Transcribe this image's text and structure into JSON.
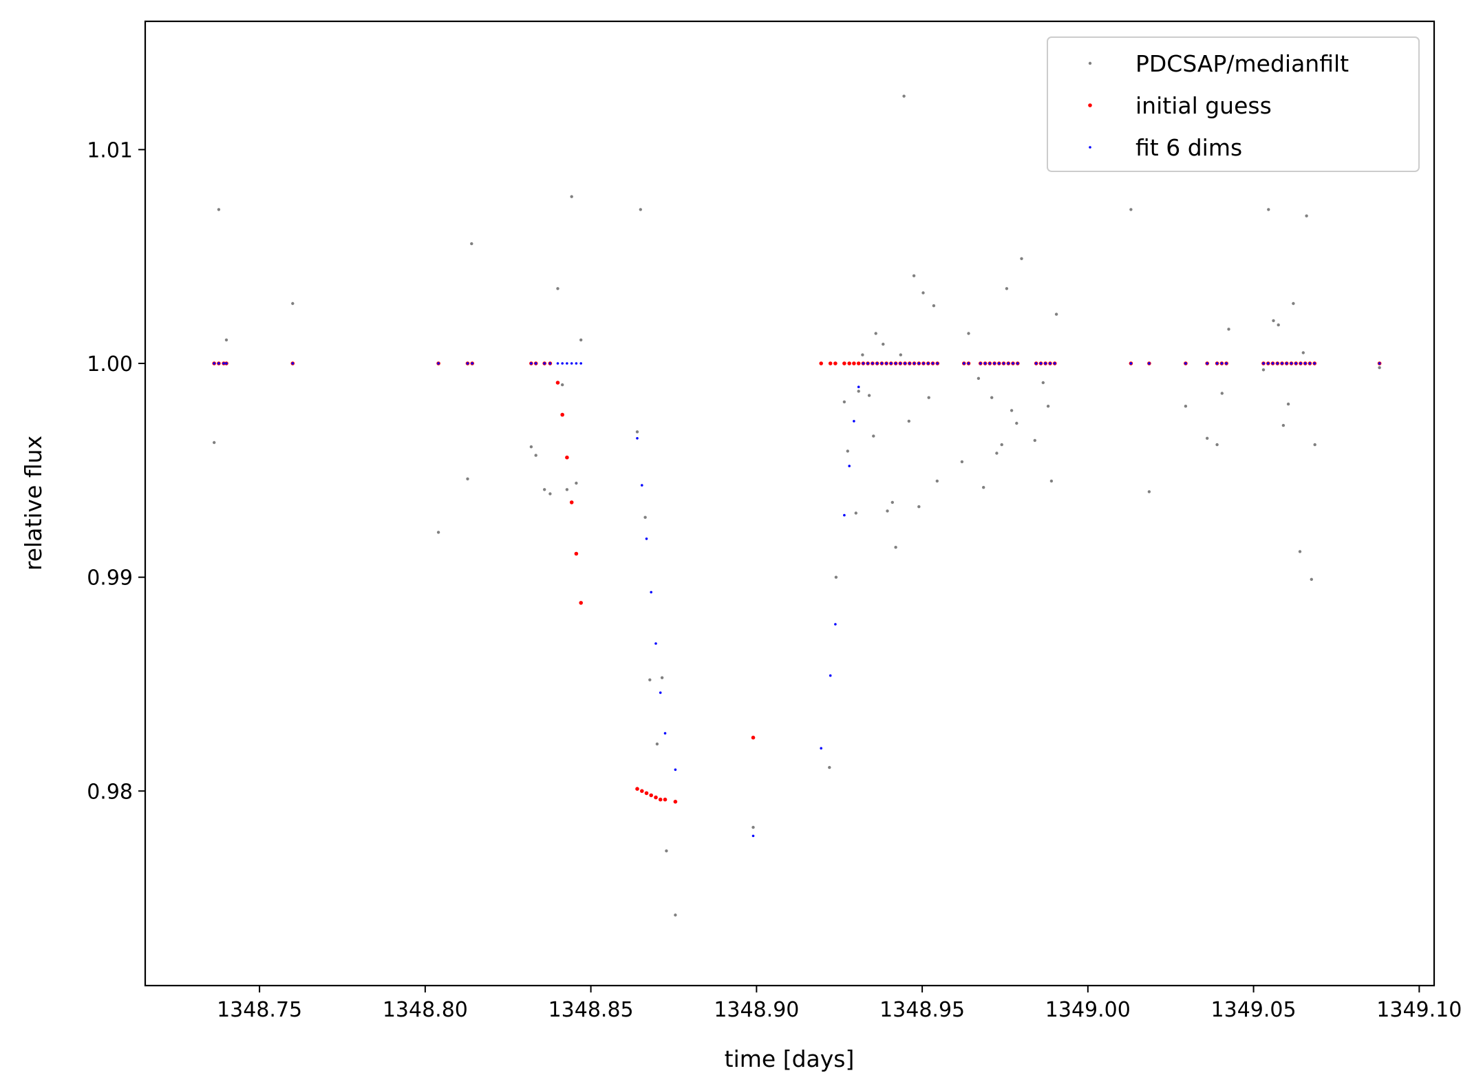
{
  "chart_data": {
    "type": "scatter",
    "title": "",
    "xlabel": "time [days]",
    "ylabel": "relative flux",
    "xlim": [
      1348.7155,
      1349.1045
    ],
    "ylim": [
      0.9709,
      1.016
    ],
    "xticks": [
      1348.75,
      1348.8,
      1348.85,
      1348.9,
      1348.95,
      1349.0,
      1349.05,
      1349.1
    ],
    "xtick_labels": [
      "1348.75",
      "1348.80",
      "1348.85",
      "1348.90",
      "1348.95",
      "1349.00",
      "1349.05",
      "1349.10"
    ],
    "yticks": [
      0.98,
      0.99,
      1.0,
      1.01
    ],
    "ytick_labels": [
      "0.98",
      "0.99",
      "1.00",
      "1.01"
    ],
    "grid": false,
    "legend_position": "top-right",
    "series": [
      {
        "name": "PDCSAP/medianfilt",
        "color": "#808080",
        "marker_radius": 2.2,
        "points": [
          [
            1348.7363,
            0.9963
          ],
          [
            1348.7377,
            1.0072
          ],
          [
            1348.74,
            1.0011
          ],
          [
            1348.76,
            1.0028
          ],
          [
            1348.804,
            0.9921
          ],
          [
            1348.8128,
            0.9946
          ],
          [
            1348.814,
            1.0056
          ],
          [
            1348.832,
            0.9961
          ],
          [
            1348.8334,
            0.9957
          ],
          [
            1348.836,
            0.9941
          ],
          [
            1348.8377,
            0.9939
          ],
          [
            1348.84,
            1.0035
          ],
          [
            1348.8414,
            0.999
          ],
          [
            1348.8428,
            0.9941
          ],
          [
            1348.8442,
            1.0078
          ],
          [
            1348.8456,
            0.9944
          ],
          [
            1348.847,
            1.0011
          ],
          [
            1348.865,
            1.0072
          ],
          [
            1348.864,
            0.9968
          ],
          [
            1348.8664,
            0.9928
          ],
          [
            1348.8678,
            0.9852
          ],
          [
            1348.87,
            0.9822
          ],
          [
            1348.8715,
            0.9853
          ],
          [
            1348.8728,
            0.9772
          ],
          [
            1348.8755,
            0.9742
          ],
          [
            1348.899,
            0.9783
          ],
          [
            1348.922,
            0.9811
          ],
          [
            1348.924,
            0.99
          ],
          [
            1348.9265,
            0.9982
          ],
          [
            1348.9275,
            0.9959
          ],
          [
            1348.93,
            0.993
          ],
          [
            1348.9308,
            0.9987
          ],
          [
            1348.932,
            1.0004
          ],
          [
            1348.934,
            0.9985
          ],
          [
            1348.9353,
            0.9966
          ],
          [
            1348.936,
            1.0014
          ],
          [
            1348.9382,
            1.0009
          ],
          [
            1348.9395,
            0.9931
          ],
          [
            1348.941,
            0.9935
          ],
          [
            1348.942,
            0.9914
          ],
          [
            1348.9435,
            1.0004
          ],
          [
            1348.9445,
            1.0125
          ],
          [
            1348.946,
            0.9973
          ],
          [
            1348.9475,
            1.0041
          ],
          [
            1348.949,
            0.9933
          ],
          [
            1348.9503,
            1.0033
          ],
          [
            1348.952,
            0.9984
          ],
          [
            1348.9535,
            1.0027
          ],
          [
            1348.9545,
            0.9945
          ],
          [
            1348.962,
            0.9954
          ],
          [
            1348.964,
            1.0014
          ],
          [
            1348.967,
            0.9993
          ],
          [
            1348.9685,
            0.9942
          ],
          [
            1348.971,
            0.9984
          ],
          [
            1348.9725,
            0.9958
          ],
          [
            1348.974,
            0.9962
          ],
          [
            1348.9755,
            1.0035
          ],
          [
            1348.977,
            0.9978
          ],
          [
            1348.9785,
            0.9972
          ],
          [
            1348.98,
            1.0049
          ],
          [
            1348.984,
            0.9964
          ],
          [
            1348.9865,
            0.9991
          ],
          [
            1348.988,
            0.998
          ],
          [
            1348.989,
            0.9945
          ],
          [
            1348.9905,
            1.0023
          ],
          [
            1349.013,
            1.0072
          ],
          [
            1349.0185,
            0.994
          ],
          [
            1349.0295,
            0.998
          ],
          [
            1349.036,
            0.9965
          ],
          [
            1349.039,
            0.9962
          ],
          [
            1349.0405,
            0.9986
          ],
          [
            1349.0425,
            1.0016
          ],
          [
            1349.053,
            0.9997
          ],
          [
            1349.0545,
            1.0072
          ],
          [
            1349.056,
            1.002
          ],
          [
            1349.0575,
            1.0018
          ],
          [
            1349.059,
            0.9971
          ],
          [
            1349.0605,
            0.9981
          ],
          [
            1349.062,
            1.0028
          ],
          [
            1349.064,
            0.9912
          ],
          [
            1349.065,
            1.0005
          ],
          [
            1349.066,
            1.0069
          ],
          [
            1349.0675,
            0.9899
          ],
          [
            1349.0685,
            0.9962
          ],
          [
            1349.088,
            0.9998
          ]
        ]
      },
      {
        "name": "initial guess",
        "color": "#ff0000",
        "marker_radius": 2.8,
        "points": [
          [
            1348.7363,
            1.0
          ],
          [
            1348.7377,
            1.0
          ],
          [
            1348.7392,
            1.0
          ],
          [
            1348.74,
            1.0
          ],
          [
            1348.76,
            1.0
          ],
          [
            1348.804,
            1.0
          ],
          [
            1348.8128,
            1.0
          ],
          [
            1348.8142,
            1.0
          ],
          [
            1348.832,
            1.0
          ],
          [
            1348.8334,
            1.0
          ],
          [
            1348.836,
            1.0
          ],
          [
            1348.8377,
            1.0
          ],
          [
            1348.84,
            0.9991
          ],
          [
            1348.8414,
            0.9976
          ],
          [
            1348.8428,
            0.9956
          ],
          [
            1348.8442,
            0.9935
          ],
          [
            1348.8456,
            0.9911
          ],
          [
            1348.847,
            0.9888
          ],
          [
            1348.864,
            0.9801
          ],
          [
            1348.8654,
            0.98
          ],
          [
            1348.8668,
            0.9799
          ],
          [
            1348.8682,
            0.9798
          ],
          [
            1348.8696,
            0.9797
          ],
          [
            1348.871,
            0.9796
          ],
          [
            1348.8724,
            0.9796
          ],
          [
            1348.8755,
            0.9795
          ],
          [
            1348.899,
            0.9825
          ],
          [
            1348.9195,
            1.0
          ],
          [
            1348.9223,
            1.0
          ],
          [
            1348.9238,
            1.0
          ],
          [
            1348.9265,
            1.0
          ],
          [
            1348.928,
            1.0
          ],
          [
            1348.9294,
            1.0
          ],
          [
            1348.9308,
            1.0
          ],
          [
            1348.9322,
            1.0
          ],
          [
            1348.9336,
            1.0
          ],
          [
            1348.935,
            1.0
          ],
          [
            1348.9364,
            1.0
          ],
          [
            1348.9378,
            1.0
          ],
          [
            1348.9392,
            1.0
          ],
          [
            1348.9406,
            1.0
          ],
          [
            1348.942,
            1.0
          ],
          [
            1348.9434,
            1.0
          ],
          [
            1348.9448,
            1.0
          ],
          [
            1348.9462,
            1.0
          ],
          [
            1348.9476,
            1.0
          ],
          [
            1348.949,
            1.0
          ],
          [
            1348.9504,
            1.0
          ],
          [
            1348.9518,
            1.0
          ],
          [
            1348.9532,
            1.0
          ],
          [
            1348.9546,
            1.0
          ],
          [
            1348.9626,
            1.0
          ],
          [
            1348.964,
            1.0
          ],
          [
            1348.9676,
            1.0
          ],
          [
            1348.969,
            1.0
          ],
          [
            1348.9704,
            1.0
          ],
          [
            1348.9718,
            1.0
          ],
          [
            1348.9732,
            1.0
          ],
          [
            1348.9746,
            1.0
          ],
          [
            1348.976,
            1.0
          ],
          [
            1348.9774,
            1.0
          ],
          [
            1348.9788,
            1.0
          ],
          [
            1348.9844,
            1.0
          ],
          [
            1348.9858,
            1.0
          ],
          [
            1348.9872,
            1.0
          ],
          [
            1348.9886,
            1.0
          ],
          [
            1348.99,
            1.0
          ],
          [
            1349.013,
            1.0
          ],
          [
            1349.0185,
            1.0
          ],
          [
            1349.0295,
            1.0
          ],
          [
            1349.036,
            1.0
          ],
          [
            1349.039,
            1.0
          ],
          [
            1349.0404,
            1.0
          ],
          [
            1349.0418,
            1.0
          ],
          [
            1349.053,
            1.0
          ],
          [
            1349.0544,
            1.0
          ],
          [
            1349.0558,
            1.0
          ],
          [
            1349.0572,
            1.0
          ],
          [
            1349.0586,
            1.0
          ],
          [
            1349.06,
            1.0
          ],
          [
            1349.0614,
            1.0
          ],
          [
            1349.0628,
            1.0
          ],
          [
            1349.0642,
            1.0
          ],
          [
            1349.0656,
            1.0
          ],
          [
            1349.067,
            1.0
          ],
          [
            1349.0684,
            1.0
          ],
          [
            1349.088,
            1.0
          ]
        ]
      },
      {
        "name": "fit 6 dims",
        "color": "#0000ff",
        "marker_radius": 1.8,
        "points": [
          [
            1348.7363,
            1.0
          ],
          [
            1348.7377,
            1.0
          ],
          [
            1348.7392,
            1.0
          ],
          [
            1348.74,
            1.0
          ],
          [
            1348.76,
            1.0
          ],
          [
            1348.804,
            1.0
          ],
          [
            1348.8128,
            1.0
          ],
          [
            1348.8142,
            1.0
          ],
          [
            1348.832,
            1.0
          ],
          [
            1348.8334,
            1.0
          ],
          [
            1348.836,
            1.0
          ],
          [
            1348.8377,
            1.0
          ],
          [
            1348.84,
            1.0
          ],
          [
            1348.8414,
            1.0
          ],
          [
            1348.8428,
            1.0
          ],
          [
            1348.8442,
            1.0
          ],
          [
            1348.8456,
            1.0
          ],
          [
            1348.847,
            1.0
          ],
          [
            1348.864,
            0.9965
          ],
          [
            1348.8654,
            0.9943
          ],
          [
            1348.8668,
            0.9918
          ],
          [
            1348.8682,
            0.9893
          ],
          [
            1348.8696,
            0.9869
          ],
          [
            1348.871,
            0.9846
          ],
          [
            1348.8724,
            0.9827
          ],
          [
            1348.8755,
            0.981
          ],
          [
            1348.899,
            0.9779
          ],
          [
            1348.9195,
            0.982
          ],
          [
            1348.9223,
            0.9854
          ],
          [
            1348.9238,
            0.9878
          ],
          [
            1348.9265,
            0.9929
          ],
          [
            1348.928,
            0.9952
          ],
          [
            1348.9294,
            0.9973
          ],
          [
            1348.9308,
            0.9989
          ],
          [
            1348.9322,
            1.0
          ],
          [
            1348.9336,
            1.0
          ],
          [
            1348.935,
            1.0
          ],
          [
            1348.9364,
            1.0
          ],
          [
            1348.9378,
            1.0
          ],
          [
            1348.9392,
            1.0
          ],
          [
            1348.9406,
            1.0
          ],
          [
            1348.942,
            1.0
          ],
          [
            1348.9434,
            1.0
          ],
          [
            1348.9448,
            1.0
          ],
          [
            1348.9462,
            1.0
          ],
          [
            1348.9476,
            1.0
          ],
          [
            1348.949,
            1.0
          ],
          [
            1348.9504,
            1.0
          ],
          [
            1348.9518,
            1.0
          ],
          [
            1348.9532,
            1.0
          ],
          [
            1348.9546,
            1.0
          ],
          [
            1348.9626,
            1.0
          ],
          [
            1348.964,
            1.0
          ],
          [
            1348.9676,
            1.0
          ],
          [
            1348.969,
            1.0
          ],
          [
            1348.9704,
            1.0
          ],
          [
            1348.9718,
            1.0
          ],
          [
            1348.9732,
            1.0
          ],
          [
            1348.9746,
            1.0
          ],
          [
            1348.976,
            1.0
          ],
          [
            1348.9774,
            1.0
          ],
          [
            1348.9788,
            1.0
          ],
          [
            1348.9844,
            1.0
          ],
          [
            1348.9858,
            1.0
          ],
          [
            1348.9872,
            1.0
          ],
          [
            1348.9886,
            1.0
          ],
          [
            1348.99,
            1.0
          ],
          [
            1349.013,
            1.0
          ],
          [
            1349.0185,
            1.0
          ],
          [
            1349.0295,
            1.0
          ],
          [
            1349.036,
            1.0
          ],
          [
            1349.039,
            1.0
          ],
          [
            1349.0404,
            1.0
          ],
          [
            1349.0418,
            1.0
          ],
          [
            1349.053,
            1.0
          ],
          [
            1349.0544,
            1.0
          ],
          [
            1349.0558,
            1.0
          ],
          [
            1349.0572,
            1.0
          ],
          [
            1349.0586,
            1.0
          ],
          [
            1349.06,
            1.0
          ],
          [
            1349.0614,
            1.0
          ],
          [
            1349.0628,
            1.0
          ],
          [
            1349.0642,
            1.0
          ],
          [
            1349.0656,
            1.0
          ],
          [
            1349.067,
            1.0
          ],
          [
            1349.0684,
            1.0
          ],
          [
            1349.088,
            1.0
          ]
        ]
      }
    ]
  }
}
